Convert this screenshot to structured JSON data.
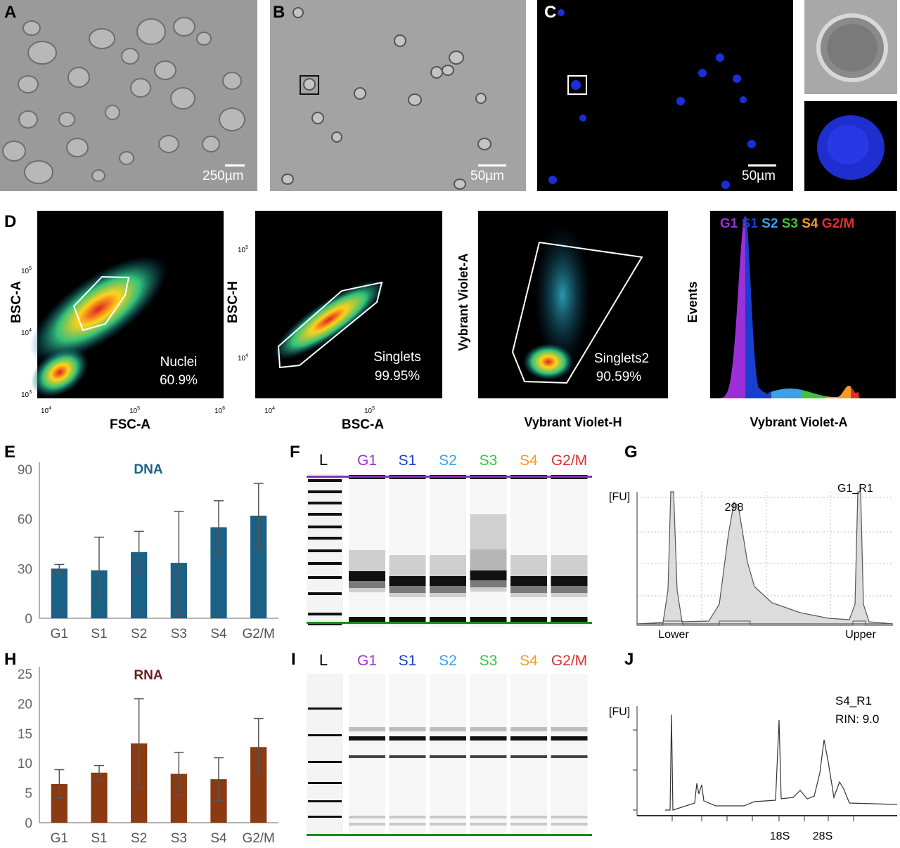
{
  "microscopy": {
    "A": {
      "letter": "A",
      "scale": "250µm"
    },
    "B": {
      "letter": "B",
      "scale": "50µm"
    },
    "C": {
      "letter": "C",
      "scale": "50µm"
    }
  },
  "flow": {
    "letter": "D",
    "plot1": {
      "gate": "Nuclei",
      "pct": "60.9%",
      "xlabel": "FSC-A",
      "ylabel": "BSC-A",
      "xticks": [
        "10",
        "10",
        "10"
      ],
      "xexp": [
        "4",
        "5",
        "6"
      ],
      "yticks": [
        "10",
        "10",
        "10"
      ],
      "yexp": [
        "3",
        "4",
        "5"
      ]
    },
    "plot2": {
      "gate": "Singlets",
      "pct": "99.95%",
      "xlabel": "BSC-A",
      "ylabel": "BSC-H",
      "xticks": [
        "10",
        "10"
      ],
      "xexp": [
        "4",
        "5"
      ],
      "yticks": [
        "10",
        "10"
      ],
      "yexp": [
        "4",
        "5"
      ]
    },
    "plot3": {
      "gate": "Singlets2",
      "pct": "90.59%",
      "xlabel": "Vybrant Violet-H",
      "ylabel": "Vybrant Violet-A"
    },
    "plot4": {
      "xlabel": "Vybrant Violet-A",
      "ylabel": "Events",
      "phases": [
        "G1",
        "S1",
        "S2",
        "S3",
        "S4",
        "G2/M"
      ],
      "phase_colors": [
        "#9b30d9",
        "#1a3fd0",
        "#3aa0ea",
        "#3bc43b",
        "#f39a2a",
        "#e02f2f"
      ]
    }
  },
  "phase_colors": [
    "#9b30d9",
    "#1a3fd0",
    "#3aa0ea",
    "#3bc43b",
    "#f39a2a",
    "#e02f2f"
  ],
  "chart_data": [
    {
      "type": "bar",
      "panel": "E",
      "title": "DNA",
      "categories": [
        "G1",
        "S1",
        "S2",
        "S3",
        "S4",
        "G2/M"
      ],
      "values": [
        30,
        29,
        40,
        33.5,
        55,
        62
      ],
      "errors": [
        2.5,
        20,
        12.5,
        31,
        16,
        19.5
      ],
      "ylim": [
        0,
        90
      ],
      "yticks": [
        0,
        30,
        60,
        90
      ],
      "color": "#1b6185",
      "title_color": "#1b6185"
    },
    {
      "type": "bar",
      "panel": "H",
      "title": "RNA",
      "categories": [
        "G1",
        "S1",
        "S2",
        "S3",
        "S4",
        "G2/M"
      ],
      "values": [
        6.5,
        8.4,
        13.3,
        8.2,
        7.3,
        12.7
      ],
      "errors": [
        2.4,
        1.2,
        7.5,
        3.6,
        3.6,
        4.8
      ],
      "ylim": [
        0,
        25
      ],
      "yticks": [
        0,
        5,
        10,
        15,
        20,
        25
      ],
      "color": "#8b3a12",
      "title_color": "#6e1d1d"
    }
  ],
  "gel_F": {
    "letter": "F",
    "ladder": "L",
    "lanes": [
      "G1",
      "S1",
      "S2",
      "S3",
      "S4",
      "G2/M"
    ]
  },
  "gel_I": {
    "letter": "I",
    "ladder": "L",
    "lanes": [
      "G1",
      "S1",
      "S2",
      "S3",
      "S4",
      "G2/M"
    ]
  },
  "trace_G": {
    "letter": "G",
    "yunit": "[FU]",
    "peak": "298",
    "sample": "G1_R1",
    "left": "Lower",
    "right": "Upper"
  },
  "trace_J": {
    "letter": "J",
    "yunit": "[FU]",
    "sample": "S4_R1",
    "rin": "RIN: 9.0",
    "peak1": "18S",
    "peak2": "28S"
  }
}
